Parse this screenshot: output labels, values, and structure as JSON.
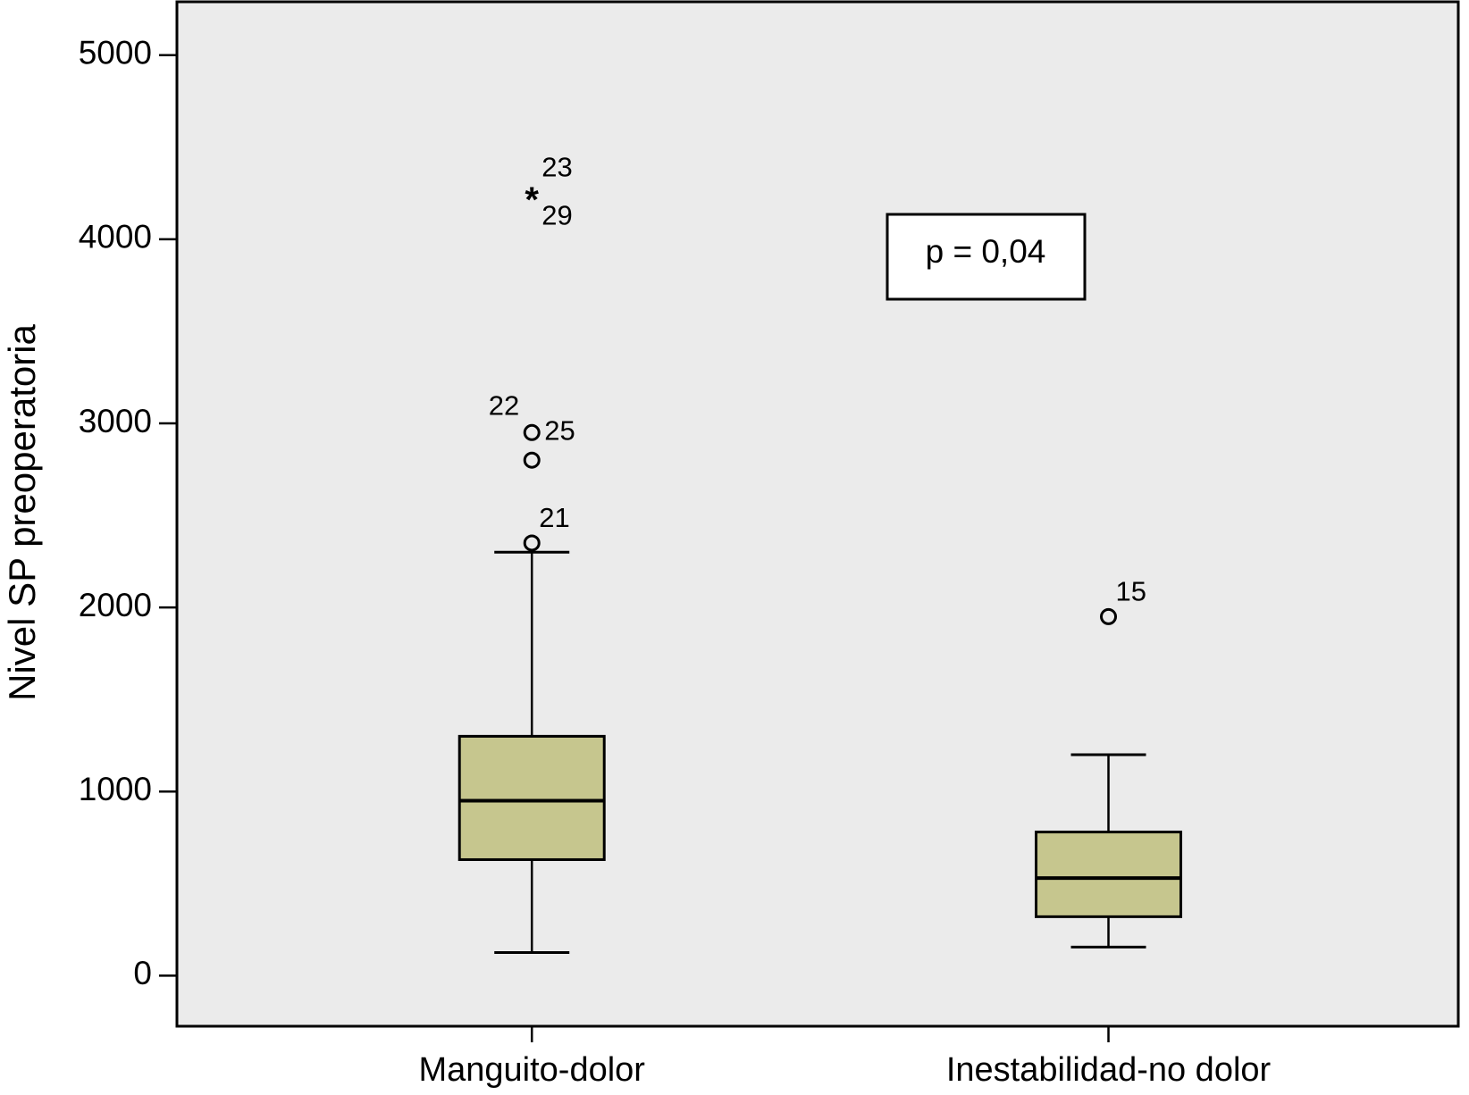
{
  "chart_data": {
    "type": "box",
    "y_label": "Nivel SP preoperatoria",
    "categories": [
      "Manguito-dolor",
      "Inestabilidad-no dolor"
    ],
    "ylim": [
      -275,
      5290
    ],
    "yticks": [
      0,
      1000,
      2000,
      3000,
      4000,
      5000
    ],
    "color": "#c6c68e",
    "background": "#ebebeb",
    "boxes": [
      {
        "whisker_low": 125,
        "q1": 630,
        "median": 950,
        "q3": 1300,
        "whisker_high": 2300,
        "outliers": [
          {
            "value": 2350,
            "labels": [
              "21"
            ]
          },
          {
            "value": 2800
          },
          {
            "value": 2950,
            "labels": [
              "22",
              "25"
            ]
          }
        ],
        "extremes": [
          {
            "value": 4250,
            "labels": [
              "23",
              "29"
            ]
          }
        ]
      },
      {
        "whisker_low": 155,
        "q1": 320,
        "median": 530,
        "q3": 780,
        "whisker_high": 1200,
        "outliers": [
          {
            "value": 1950,
            "labels": [
              "15"
            ]
          }
        ],
        "extremes": []
      }
    ],
    "annotation": "p = 0,04"
  }
}
